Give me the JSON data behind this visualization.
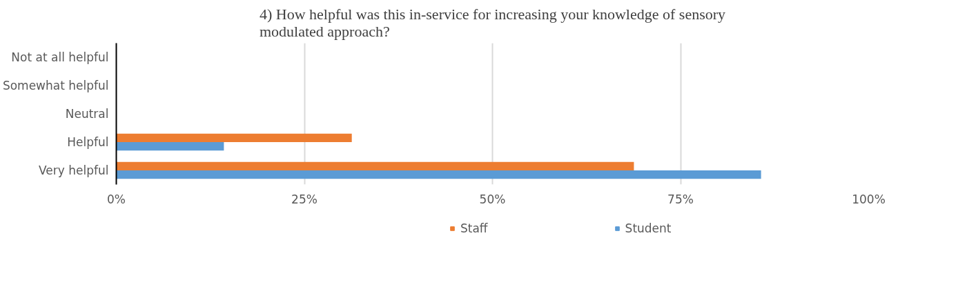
{
  "chart_data": {
    "type": "bar",
    "orientation": "horizontal",
    "title": "4) How helpful was this in-service for increasing your knowledge of sensory modulated approach?",
    "categories": [
      "Not at all helpful",
      "Somewhat helpful",
      "Neutral",
      "Helpful",
      "Very helpful"
    ],
    "series": [
      {
        "name": "Staff",
        "color": "#ed7d31",
        "values": [
          0,
          0,
          0,
          31.3,
          68.8
        ]
      },
      {
        "name": "Student",
        "color": "#5b9bd5",
        "values": [
          0,
          0,
          0,
          14.3,
          85.7
        ]
      }
    ],
    "xlim": [
      0,
      100
    ],
    "xticks": [
      {
        "value": 0,
        "label": "0%"
      },
      {
        "value": 25,
        "label": "25%"
      },
      {
        "value": 50,
        "label": "50%"
      },
      {
        "value": 75,
        "label": "75%"
      },
      {
        "value": 100,
        "label": "100%"
      }
    ],
    "grid": "x",
    "legend": "bottom"
  }
}
